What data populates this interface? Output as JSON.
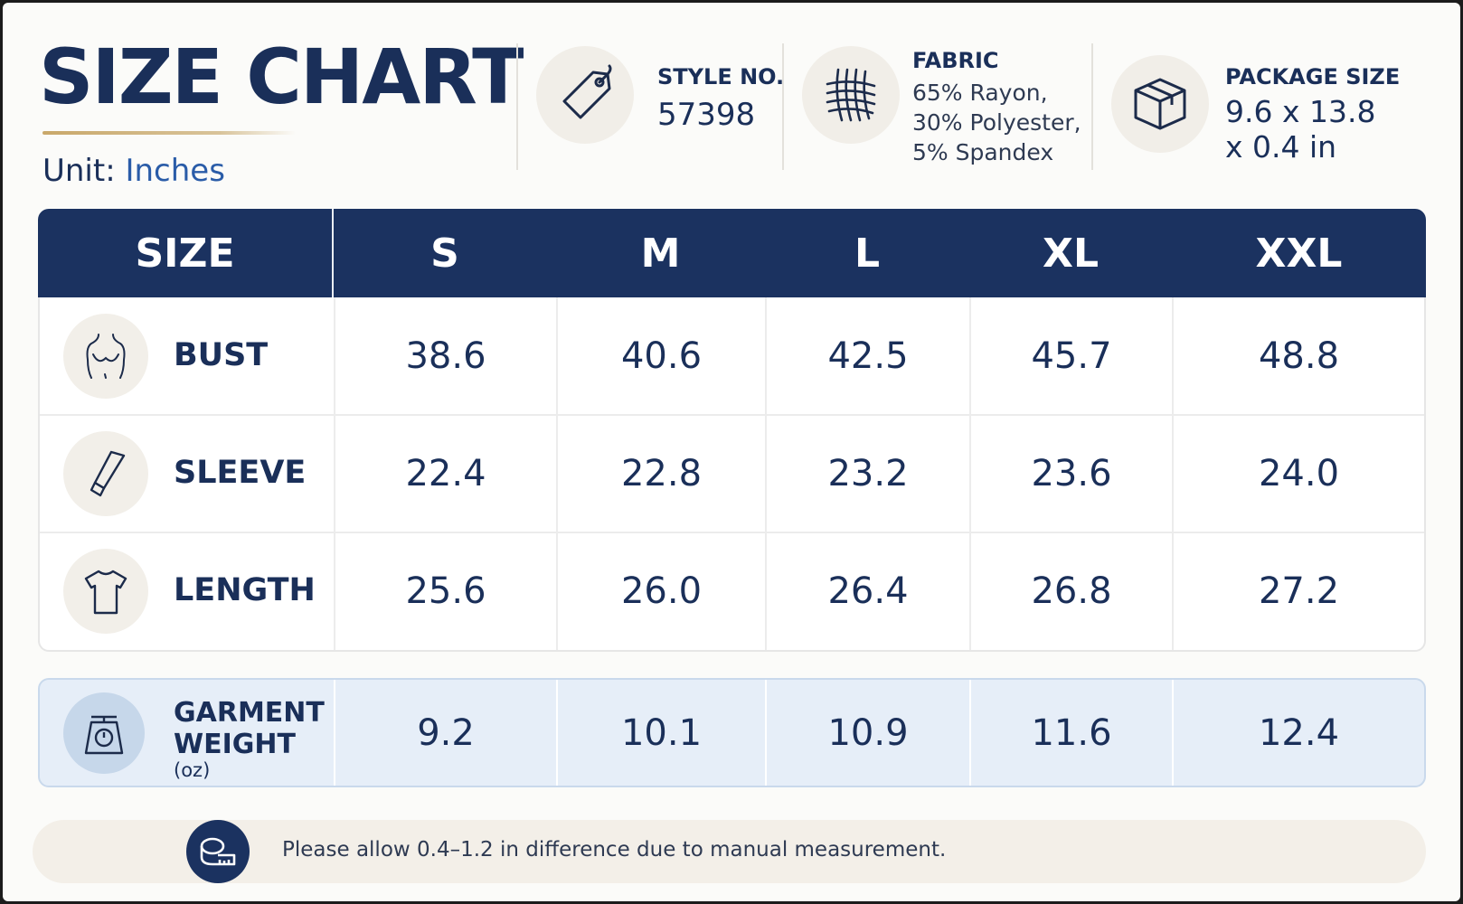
{
  "header": {
    "title": "SIZE CHART",
    "unit_label": "Unit:",
    "unit_value": "Inches"
  },
  "info": {
    "style": {
      "label": "STYLE NO.",
      "value": "57398",
      "icon": "price-tag-icon"
    },
    "fabric": {
      "label": "FABRIC",
      "lines": [
        "65% Rayon,",
        "30% Polyester,",
        "5% Spandex"
      ],
      "icon": "fabric-weave-icon"
    },
    "package": {
      "label": "PACKAGE SIZE",
      "lines": [
        "9.6 x 13.8",
        "x 0.4 in"
      ],
      "icon": "box-icon"
    }
  },
  "table": {
    "header": [
      "SIZE",
      "S",
      "M",
      "L",
      "XL",
      "XXL"
    ],
    "rows": [
      {
        "label": "BUST",
        "icon": "bust-icon",
        "values": [
          "38.6",
          "40.6",
          "42.5",
          "45.7",
          "48.8"
        ]
      },
      {
        "label": "SLEEVE",
        "icon": "sleeve-icon",
        "values": [
          "22.4",
          "22.8",
          "23.2",
          "23.6",
          "24.0"
        ]
      },
      {
        "label": "LENGTH",
        "icon": "tshirt-icon",
        "values": [
          "25.6",
          "26.0",
          "26.4",
          "26.8",
          "27.2"
        ]
      }
    ],
    "weight": {
      "label_line1": "GARMENT",
      "label_line2": "WEIGHT",
      "unit": "(oz)",
      "icon": "scale-icon",
      "values": [
        "9.2",
        "10.1",
        "10.9",
        "11.6",
        "12.4"
      ]
    }
  },
  "note": {
    "text": "Please allow 0.4–1.2 in difference due to manual measurement.",
    "icon": "measuring-tape-icon"
  },
  "colors": {
    "navy": "#1b3260",
    "gold": "#c9a86a",
    "accent_blue": "#2a5ca8",
    "weight_row_bg": "#e6eef8"
  }
}
